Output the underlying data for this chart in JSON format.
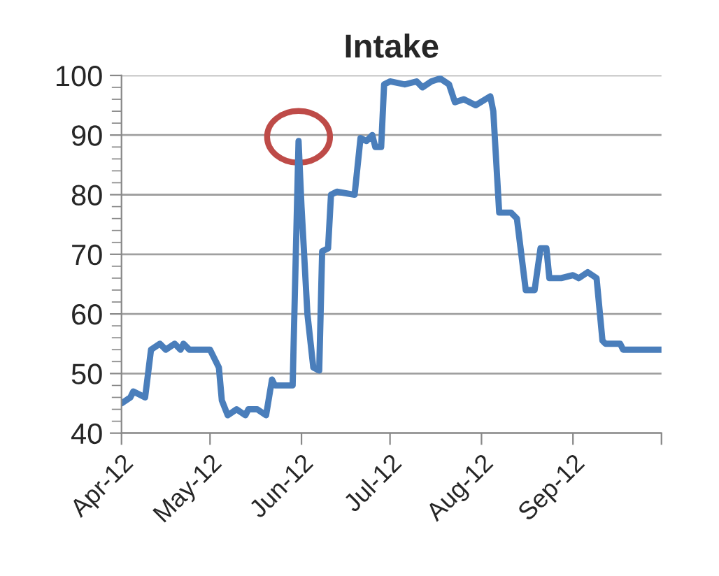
{
  "chart_data": {
    "type": "line",
    "title": "Intake",
    "x": [
      "2012-04-01",
      "2012-04-04",
      "2012-04-05",
      "2012-04-09",
      "2012-04-11",
      "2012-04-14",
      "2012-04-16",
      "2012-04-19",
      "2012-04-21",
      "2012-04-22",
      "2012-04-24",
      "2012-05-01",
      "2012-05-04",
      "2012-05-05",
      "2012-05-07",
      "2012-05-10",
      "2012-05-13",
      "2012-05-14",
      "2012-05-17",
      "2012-05-20",
      "2012-05-22",
      "2012-05-23",
      "2012-05-29",
      "2012-05-31",
      "2012-06-01",
      "2012-06-03",
      "2012-06-05",
      "2012-06-07",
      "2012-06-08",
      "2012-06-10",
      "2012-06-11",
      "2012-06-13",
      "2012-06-19",
      "2012-06-21",
      "2012-06-23",
      "2012-06-25",
      "2012-06-26",
      "2012-06-28",
      "2012-06-29",
      "2012-07-01",
      "2012-07-06",
      "2012-07-10",
      "2012-07-12",
      "2012-07-15",
      "2012-07-18",
      "2012-07-21",
      "2012-07-23",
      "2012-07-26",
      "2012-07-30",
      "2012-08-04",
      "2012-08-05",
      "2012-08-07",
      "2012-08-11",
      "2012-08-13",
      "2012-08-16",
      "2012-08-19",
      "2012-08-21",
      "2012-08-23",
      "2012-08-24",
      "2012-08-27",
      "2012-08-28",
      "2012-09-01",
      "2012-09-03",
      "2012-09-06",
      "2012-09-09",
      "2012-09-11",
      "2012-09-12",
      "2012-09-17",
      "2012-09-18",
      "2012-10-01"
    ],
    "series": [
      {
        "color": "#4a7ebb",
        "values": [
          45,
          46,
          47,
          46,
          54,
          55,
          54,
          55,
          54,
          55,
          54,
          54,
          51,
          45.5,
          43,
          44,
          43,
          44,
          44,
          43,
          49,
          48,
          48,
          89,
          78,
          60,
          51,
          50.5,
          70.5,
          71,
          80,
          80.5,
          80,
          89.5,
          89,
          90,
          88,
          88,
          98.5,
          99,
          98.5,
          99,
          98,
          99,
          99.5,
          98.5,
          95.5,
          96,
          95,
          96.5,
          94,
          77,
          77,
          76,
          64,
          64,
          71,
          71,
          66,
          66,
          66,
          66.5,
          66,
          67,
          66,
          55.5,
          55,
          55,
          54,
          54
        ]
      }
    ],
    "xlim": [
      "2012-04-01",
      "2012-10-01"
    ],
    "xticks": [
      {
        "value": "2012-04-01",
        "label": "Apr-12"
      },
      {
        "value": "2012-05-01",
        "label": "May-12"
      },
      {
        "value": "2012-06-01",
        "label": "Jun-12"
      },
      {
        "value": "2012-07-01",
        "label": "Jul-12"
      },
      {
        "value": "2012-08-01",
        "label": "Aug-12"
      },
      {
        "value": "2012-09-01",
        "label": "Sep-12"
      },
      {
        "value": "2012-10-01",
        "label": null
      }
    ],
    "ylim": [
      40,
      100
    ],
    "yticks": [
      40,
      50,
      60,
      70,
      80,
      90,
      100
    ],
    "grid": "y",
    "legend": false,
    "marker": "none",
    "line_style": "solid"
  }
}
